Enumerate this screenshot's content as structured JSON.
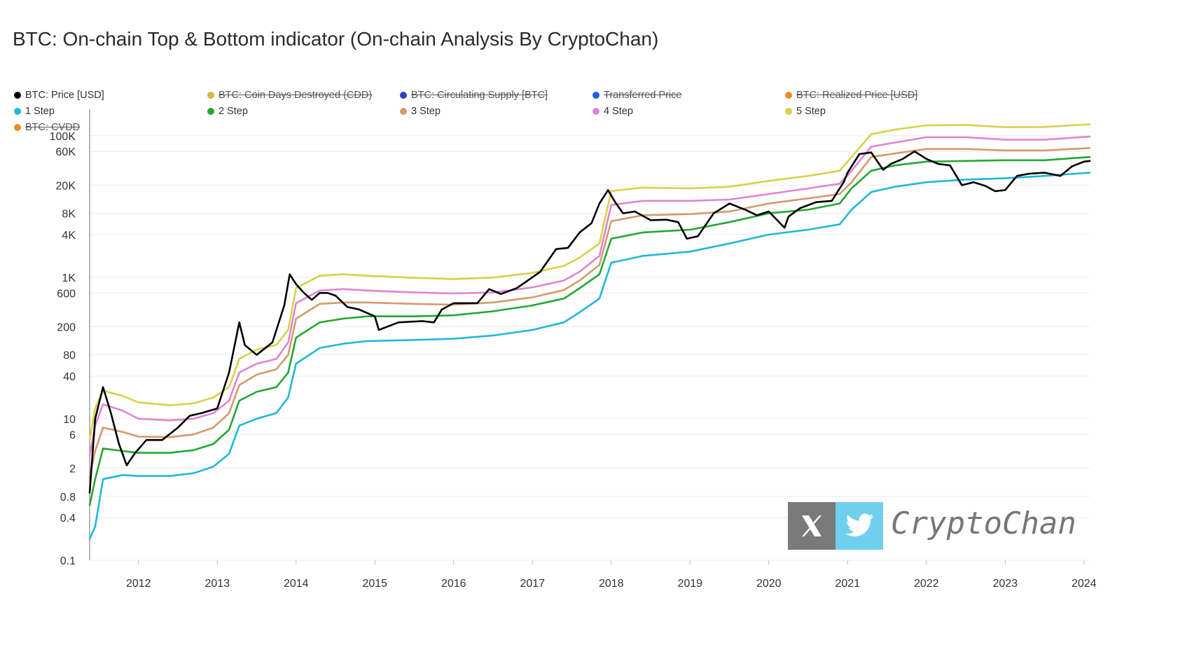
{
  "chart_data": {
    "type": "line",
    "title": "BTC: On-chain Top & Bottom indicator (On-chain Analysis By CryptoChan)",
    "y_scale": "log",
    "ylim": [
      0.1,
      150000
    ],
    "y_ticks": [
      {
        "v": 0.1,
        "label": "0.1"
      },
      {
        "v": 0.4,
        "label": "0.4"
      },
      {
        "v": 0.8,
        "label": "0.8"
      },
      {
        "v": 2,
        "label": "2"
      },
      {
        "v": 6,
        "label": "6"
      },
      {
        "v": 10,
        "label": "10"
      },
      {
        "v": 40,
        "label": "40"
      },
      {
        "v": 80,
        "label": "80"
      },
      {
        "v": 200,
        "label": "200"
      },
      {
        "v": 600,
        "label": "600"
      },
      {
        "v": 1000,
        "label": "1K"
      },
      {
        "v": 4000,
        "label": "4K"
      },
      {
        "v": 8000,
        "label": "8K"
      },
      {
        "v": 20000,
        "label": "20K"
      },
      {
        "v": 60000,
        "label": "60K"
      },
      {
        "v": 100000,
        "label": "100K"
      }
    ],
    "x_ticks": [
      "2012",
      "2013",
      "2014",
      "2015",
      "2016",
      "2017",
      "2018",
      "2019",
      "2020",
      "2021",
      "2022",
      "2023",
      "2024"
    ],
    "xlim": [
      2011.38,
      2024.12
    ],
    "legend_position": "top",
    "legend": [
      {
        "label": "BTC: Price [USD]",
        "color": "#000000",
        "hidden": false
      },
      {
        "label": "BTC: Coin Days Destroyed (CDD)",
        "color": "#d4b83a",
        "hidden": true
      },
      {
        "label": "BTC: Circulating Supply [BTC]",
        "color": "#2b3fc4",
        "hidden": true
      },
      {
        "label": "Transferred Price",
        "color": "#1f5fe0",
        "hidden": true
      },
      {
        "label": "BTC: Realized Price [USD]",
        "color": "#f08a24",
        "hidden": true
      },
      {
        "label": "1 Step",
        "color": "#1fb8d8",
        "hidden": false
      },
      {
        "label": "2 Step",
        "color": "#22a833",
        "hidden": false
      },
      {
        "label": "3 Step",
        "color": "#d49a6a",
        "hidden": false
      },
      {
        "label": "4 Step",
        "color": "#e283d3",
        "hidden": false
      },
      {
        "label": "5 Step",
        "color": "#d6d24a",
        "hidden": false
      },
      {
        "label": "BTC: CVDD",
        "color": "#f08a24",
        "hidden": true
      }
    ],
    "series": [
      {
        "name": "BTC: Price [USD]",
        "color": "#000000",
        "width": 2.6,
        "x": [
          2011.38,
          2011.45,
          2011.55,
          2011.65,
          2011.75,
          2011.85,
          2011.95,
          2012.1,
          2012.3,
          2012.5,
          2012.65,
          2012.8,
          2013.0,
          2013.15,
          2013.28,
          2013.35,
          2013.5,
          2013.7,
          2013.85,
          2013.92,
          2014.0,
          2014.1,
          2014.2,
          2014.3,
          2014.4,
          2014.5,
          2014.65,
          2014.8,
          2015.0,
          2015.05,
          2015.3,
          2015.6,
          2015.75,
          2015.85,
          2016.0,
          2016.3,
          2016.45,
          2016.6,
          2016.8,
          2017.0,
          2017.1,
          2017.3,
          2017.45,
          2017.6,
          2017.75,
          2017.85,
          2017.96,
          2018.05,
          2018.15,
          2018.3,
          2018.5,
          2018.7,
          2018.85,
          2018.96,
          2019.1,
          2019.3,
          2019.5,
          2019.7,
          2019.85,
          2020.0,
          2020.2,
          2020.25,
          2020.4,
          2020.6,
          2020.8,
          2020.95,
          2021.0,
          2021.15,
          2021.3,
          2021.45,
          2021.55,
          2021.7,
          2021.85,
          2022.0,
          2022.15,
          2022.3,
          2022.45,
          2022.6,
          2022.75,
          2022.87,
          2023.0,
          2023.15,
          2023.3,
          2023.5,
          2023.7,
          2023.85,
          2024.0,
          2024.1
        ],
        "values": [
          0.9,
          10,
          28,
          12,
          4.5,
          2.2,
          3.2,
          5,
          5,
          7.5,
          11,
          12,
          14,
          45,
          230,
          110,
          80,
          120,
          400,
          1100,
          800,
          600,
          480,
          600,
          600,
          550,
          380,
          350,
          280,
          180,
          230,
          240,
          230,
          350,
          430,
          430,
          680,
          580,
          700,
          1000,
          1200,
          2500,
          2600,
          4300,
          5800,
          11000,
          17000,
          11500,
          8000,
          8500,
          6400,
          6500,
          6000,
          3500,
          3800,
          8000,
          11000,
          9000,
          7500,
          8500,
          5000,
          7200,
          9500,
          11500,
          12000,
          22000,
          30000,
          55000,
          58000,
          33000,
          40000,
          47000,
          60000,
          47000,
          40000,
          38000,
          20000,
          22000,
          19500,
          16500,
          17000,
          27000,
          29000,
          30000,
          27000,
          37000,
          43000,
          44000
        ]
      },
      {
        "name": "1 Step",
        "color": "#1fb8d8",
        "width": 2.6,
        "x": [
          2011.38,
          2011.45,
          2011.55,
          2011.8,
          2012.0,
          2012.4,
          2012.7,
          2012.95,
          2013.15,
          2013.28,
          2013.5,
          2013.75,
          2013.9,
          2014.0,
          2014.3,
          2014.6,
          2014.9,
          2015.5,
          2016.0,
          2016.5,
          2017.0,
          2017.4,
          2017.6,
          2017.85,
          2018.0,
          2018.4,
          2019.0,
          2019.5,
          2020.0,
          2020.5,
          2020.9,
          2021.05,
          2021.3,
          2021.6,
          2022.0,
          2022.5,
          2023.0,
          2023.5,
          2024.12
        ],
        "values": [
          0.2,
          0.3,
          1.4,
          1.6,
          1.55,
          1.55,
          1.7,
          2.1,
          3.2,
          8,
          10,
          12,
          20,
          60,
          100,
          115,
          125,
          130,
          135,
          150,
          180,
          230,
          320,
          500,
          1600,
          2000,
          2300,
          3000,
          4000,
          4700,
          5600,
          9000,
          16000,
          19000,
          22000,
          24000,
          25000,
          27000,
          30000
        ]
      },
      {
        "name": "2 Step",
        "color": "#22a833",
        "width": 2.6,
        "x": [
          2011.38,
          2011.45,
          2011.55,
          2011.8,
          2012.0,
          2012.4,
          2012.7,
          2012.95,
          2013.15,
          2013.28,
          2013.5,
          2013.75,
          2013.9,
          2014.0,
          2014.3,
          2014.6,
          2014.9,
          2015.5,
          2016.0,
          2016.5,
          2017.0,
          2017.4,
          2017.6,
          2017.85,
          2018.0,
          2018.4,
          2019.0,
          2019.5,
          2020.0,
          2020.5,
          2020.9,
          2021.05,
          2021.3,
          2021.6,
          2022.0,
          2022.5,
          2023.0,
          2023.5,
          2024.12
        ],
        "values": [
          0.6,
          1.4,
          3.8,
          3.5,
          3.3,
          3.3,
          3.6,
          4.4,
          7,
          18,
          24,
          28,
          45,
          140,
          230,
          260,
          280,
          280,
          290,
          330,
          400,
          500,
          700,
          1100,
          3500,
          4300,
          4700,
          6000,
          8000,
          9000,
          11000,
          18000,
          32000,
          38000,
          43000,
          44000,
          45000,
          45000,
          50000
        ]
      },
      {
        "name": "3 Step",
        "color": "#d49a6a",
        "width": 2.6,
        "x": [
          2011.38,
          2011.45,
          2011.55,
          2011.8,
          2012.0,
          2012.4,
          2012.7,
          2012.95,
          2013.15,
          2013.28,
          2013.5,
          2013.75,
          2013.9,
          2014.0,
          2014.3,
          2014.6,
          2014.9,
          2015.5,
          2016.0,
          2016.5,
          2017.0,
          2017.4,
          2017.6,
          2017.85,
          2018.0,
          2018.4,
          2019.0,
          2019.5,
          2020.0,
          2020.5,
          2020.9,
          2021.05,
          2021.3,
          2021.6,
          2022.0,
          2022.5,
          2023.0,
          2023.5,
          2024.12
        ],
        "values": [
          1.5,
          3.5,
          7.5,
          6.5,
          5.6,
          5.5,
          6.0,
          7.5,
          12,
          30,
          42,
          50,
          80,
          260,
          420,
          440,
          440,
          420,
          410,
          440,
          520,
          660,
          900,
          1500,
          6200,
          7500,
          7800,
          8500,
          11000,
          13000,
          15000,
          22000,
          50000,
          56000,
          65000,
          65000,
          62000,
          62000,
          67000
        ]
      },
      {
        "name": "4 Step",
        "color": "#e283d3",
        "width": 2.6,
        "x": [
          2011.38,
          2011.45,
          2011.55,
          2011.8,
          2012.0,
          2012.4,
          2012.7,
          2012.95,
          2013.15,
          2013.28,
          2013.5,
          2013.75,
          2013.9,
          2014.0,
          2014.3,
          2014.6,
          2014.9,
          2015.5,
          2016.0,
          2016.5,
          2017.0,
          2017.4,
          2017.6,
          2017.85,
          2018.0,
          2018.4,
          2019.0,
          2019.5,
          2020.0,
          2020.5,
          2020.9,
          2021.05,
          2021.3,
          2021.6,
          2022.0,
          2022.5,
          2023.0,
          2023.5,
          2024.12
        ],
        "values": [
          3,
          8,
          16,
          13,
          10,
          9.5,
          10,
          12,
          18,
          45,
          60,
          70,
          120,
          430,
          650,
          680,
          650,
          610,
          590,
          610,
          720,
          900,
          1200,
          2000,
          10500,
          12000,
          12000,
          12500,
          15000,
          18000,
          21000,
          32000,
          70000,
          80000,
          95000,
          95000,
          88000,
          88000,
          97000
        ]
      },
      {
        "name": "5 Step",
        "color": "#d6d24a",
        "width": 2.6,
        "x": [
          2011.38,
          2011.45,
          2011.55,
          2011.8,
          2012.0,
          2012.4,
          2012.7,
          2012.95,
          2013.15,
          2013.28,
          2013.5,
          2013.75,
          2013.9,
          2014.0,
          2014.3,
          2014.6,
          2014.9,
          2015.5,
          2016.0,
          2016.5,
          2017.0,
          2017.4,
          2017.6,
          2017.85,
          2018.0,
          2018.4,
          2019.0,
          2019.5,
          2020.0,
          2020.5,
          2020.9,
          2021.05,
          2021.3,
          2021.6,
          2022.0,
          2022.5,
          2023.0,
          2023.5,
          2024.12
        ],
        "values": [
          5,
          14,
          25,
          21,
          17,
          15.5,
          16.5,
          20,
          28,
          70,
          95,
          110,
          180,
          700,
          1050,
          1100,
          1050,
          980,
          940,
          990,
          1150,
          1450,
          1900,
          3000,
          16500,
          18500,
          18000,
          19000,
          23000,
          27000,
          32000,
          50000,
          105000,
          122000,
          140000,
          142000,
          132000,
          133000,
          145000
        ]
      }
    ]
  },
  "watermark": {
    "text": "CryptoChan",
    "icons": [
      "x-logo-icon",
      "twitter-bird-icon"
    ]
  }
}
